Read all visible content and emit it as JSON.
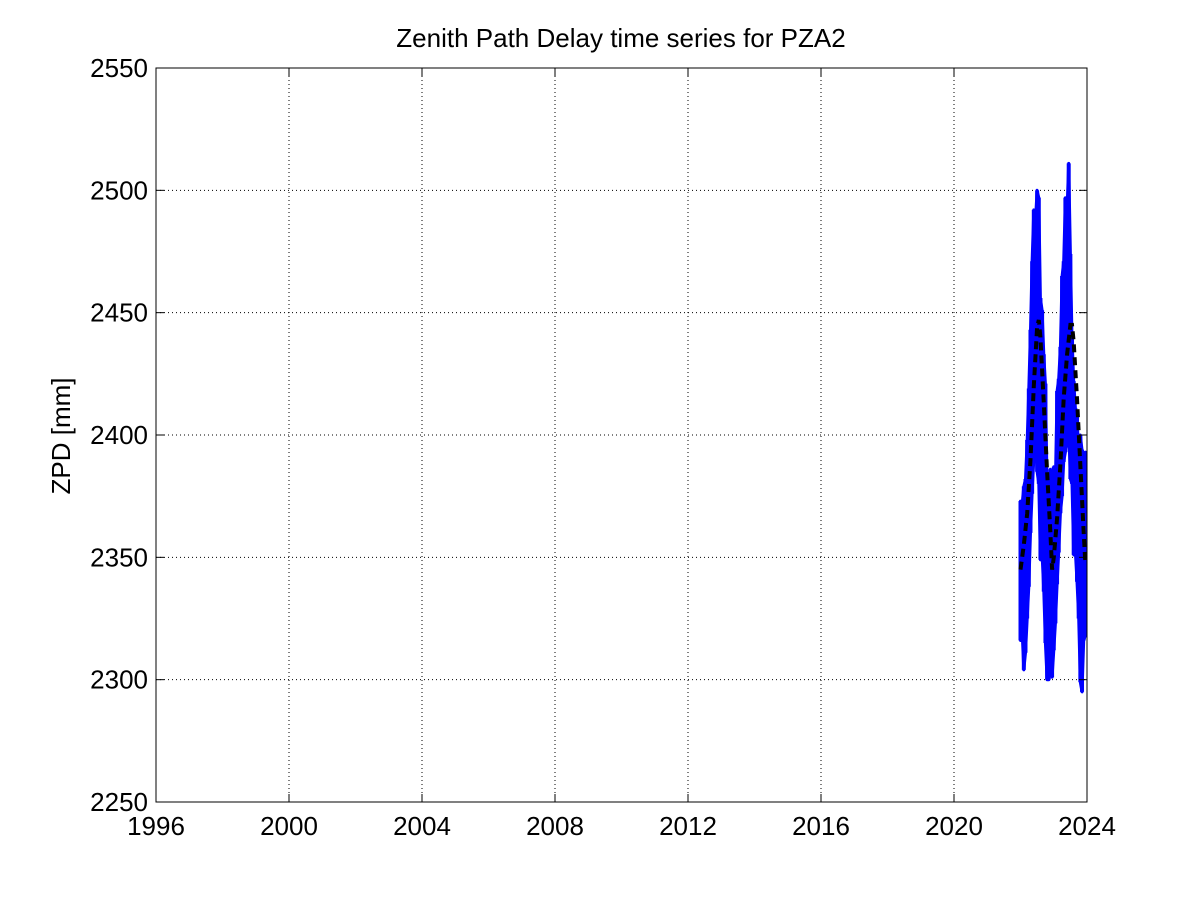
{
  "chart_data": {
    "type": "line",
    "title": "Zenith Path Delay time series for PZA2",
    "xlabel": "",
    "ylabel": "ZPD [mm]",
    "xlim": [
      1996,
      2024
    ],
    "ylim": [
      2250,
      2550
    ],
    "xticks": [
      1996,
      2000,
      2004,
      2008,
      2012,
      2016,
      2020,
      2024
    ],
    "yticks": [
      2250,
      2300,
      2350,
      2400,
      2450,
      2500,
      2550
    ],
    "grid": true,
    "series": [
      {
        "color": "#0000ff",
        "style": "solid",
        "x": [
          2022.0,
          2022.05,
          2022.1,
          2022.15,
          2022.2,
          2022.25,
          2022.3,
          2022.35,
          2022.4,
          2022.45,
          2022.5,
          2022.55,
          2022.6,
          2022.65,
          2022.7,
          2022.75,
          2022.8,
          2022.85,
          2022.9,
          2022.95,
          2023.0,
          2023.05,
          2023.1,
          2023.15,
          2023.2,
          2023.25,
          2023.3,
          2023.35,
          2023.4,
          2023.45,
          2023.5,
          2023.55,
          2023.6,
          2023.65,
          2023.7,
          2023.75,
          2023.8,
          2023.85,
          2023.9,
          2023.95
        ],
        "upper": [
          2373,
          2372,
          2379,
          2382,
          2398,
          2419,
          2443,
          2471,
          2492,
          2488,
          2500,
          2497,
          2456,
          2451,
          2433,
          2421,
          2380,
          2376,
          2386,
          2375,
          2387,
          2381,
          2418,
          2423,
          2436,
          2465,
          2471,
          2497,
          2493,
          2511,
          2474,
          2440,
          2422,
          2411,
          2408,
          2392,
          2400,
          2394,
          2378,
          2393
        ],
        "lower": [
          2316,
          2319,
          2304,
          2311,
          2325,
          2338,
          2360,
          2376,
          2390,
          2399,
          2385,
          2380,
          2349,
          2351,
          2336,
          2315,
          2300,
          2300,
          2308,
          2301,
          2312,
          2323,
          2339,
          2352,
          2368,
          2375,
          2389,
          2393,
          2397,
          2402,
          2382,
          2380,
          2351,
          2352,
          2340,
          2325,
          2299,
          2295,
          2316,
          2318
        ]
      },
      {
        "color": "#000000",
        "style": "dashed",
        "x": [
          2022.0,
          2022.1,
          2022.2,
          2022.3,
          2022.4,
          2022.5,
          2022.55,
          2022.6,
          2022.7,
          2022.8,
          2022.9,
          2022.95,
          2023.0,
          2023.1,
          2023.2,
          2023.3,
          2023.4,
          2023.5,
          2023.55,
          2023.6,
          2023.7,
          2023.8,
          2023.9,
          2023.95
        ],
        "y": [
          2345,
          2355,
          2368,
          2390,
          2420,
          2444,
          2447,
          2440,
          2413,
          2385,
          2360,
          2345,
          2350,
          2366,
          2388,
          2415,
          2433,
          2445,
          2445,
          2438,
          2415,
          2388,
          2360,
          2348
        ]
      }
    ]
  }
}
